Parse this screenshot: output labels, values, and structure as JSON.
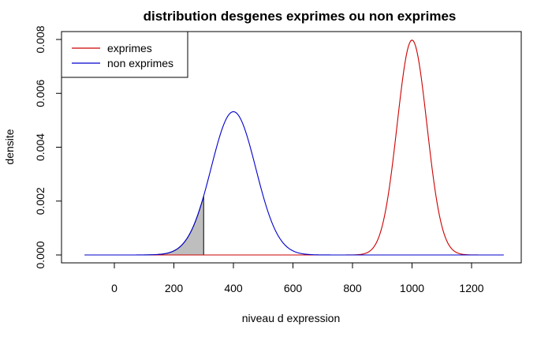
{
  "chart_data": {
    "type": "line",
    "title": "distribution desgenes exprimes ou non exprimes",
    "xlabel": "niveau d expression",
    "ylabel": "densite",
    "xlim": [
      -100,
      1310
    ],
    "ylim": [
      0,
      0.008
    ],
    "x_ticks": [
      0,
      200,
      400,
      600,
      800,
      1000,
      1200
    ],
    "x_tick_labels": [
      "0",
      "200",
      "400",
      "600",
      "800",
      "1000",
      "1200"
    ],
    "y_ticks": [
      0,
      0.002,
      0.004,
      0.006,
      0.008
    ],
    "y_tick_labels": [
      "0.000",
      "0.002",
      "0.004",
      "0.006",
      "0.008"
    ],
    "grid": false,
    "legend_position": "top-left",
    "series": [
      {
        "name": "exprimes",
        "color": "#cc0000",
        "distribution": "normal",
        "mean": 1000,
        "sd": 50
      },
      {
        "name": "non exprimes",
        "color": "#0000cc",
        "distribution": "normal",
        "mean": 400,
        "sd": 75
      }
    ],
    "shaded_region": {
      "series_index": 1,
      "from": 100,
      "to": 300,
      "fill": "#bebebe"
    }
  }
}
